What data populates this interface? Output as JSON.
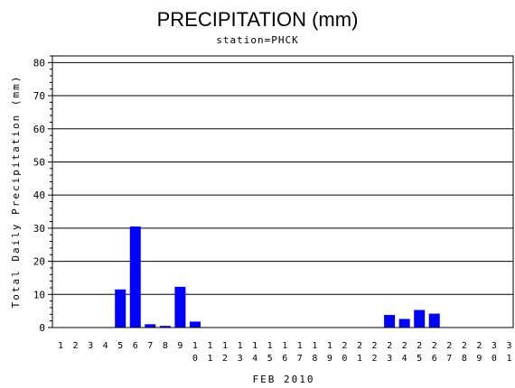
{
  "chart_data": {
    "type": "bar",
    "title": "PRECIPITATION (mm)",
    "subtitle": "station=PHCK",
    "xlabel": "FEB 2010",
    "ylabel": "Total Daily Precipitation (mm)",
    "ylim": [
      0,
      82
    ],
    "yticks": [
      0,
      10,
      20,
      30,
      40,
      50,
      60,
      70,
      80
    ],
    "grid": true,
    "bar_color": "#0000ff",
    "categories": [
      "1",
      "2",
      "3",
      "4",
      "5",
      "6",
      "7",
      "8",
      "9",
      "10",
      "11",
      "12",
      "13",
      "14",
      "15",
      "16",
      "17",
      "18",
      "19",
      "20",
      "21",
      "22",
      "23",
      "24",
      "25",
      "26",
      "27",
      "28",
      "29",
      "30",
      "31"
    ],
    "values": [
      0,
      0,
      0,
      0,
      11.5,
      30.5,
      1.0,
      0.5,
      12.3,
      1.8,
      0,
      0,
      0,
      0,
      0,
      0,
      0,
      0,
      0,
      0,
      0,
      0,
      3.8,
      2.6,
      5.3,
      4.2,
      0,
      0,
      0,
      0,
      0
    ]
  }
}
